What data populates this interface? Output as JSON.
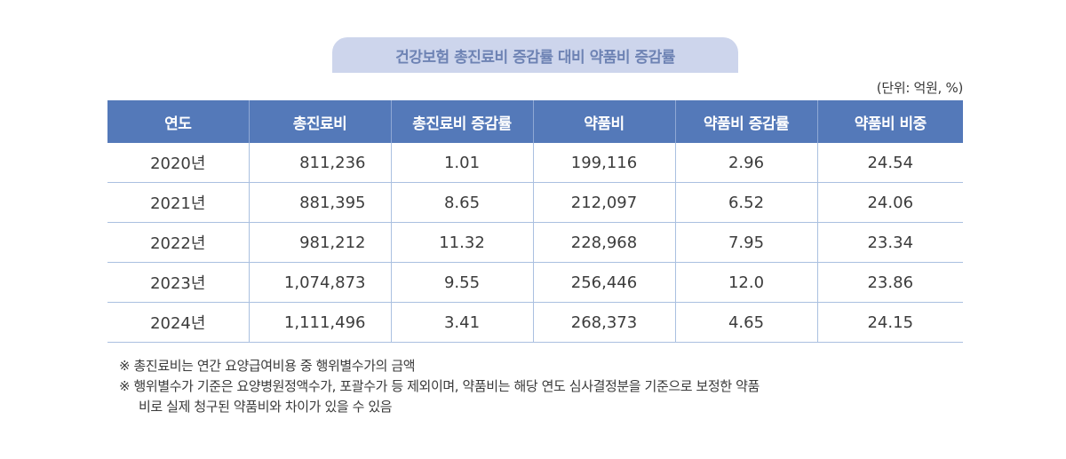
{
  "title": "건강보험 총진료비 증감률 대비 약품비 증감률",
  "unit_note": "(단위: 억원, %)",
  "table": {
    "headers": [
      "연도",
      "총진료비",
      "총진료비 증감률",
      "약품비",
      "약품비 증감률",
      "약품비 비중"
    ],
    "rows": [
      [
        "2020년",
        "811,236",
        "1.01",
        "199,116",
        "2.96",
        "24.54"
      ],
      [
        "2021년",
        "881,395",
        "8.65",
        "212,097",
        "6.52",
        "24.06"
      ],
      [
        "2022년",
        "981,212",
        "11.32",
        "228,968",
        "7.95",
        "23.34"
      ],
      [
        "2023년",
        "1,074,873",
        "9.55",
        "256,446",
        "12.0",
        "23.86"
      ],
      [
        "2024년",
        "1,111,496",
        "3.41",
        "268,373",
        "4.65",
        "24.15"
      ]
    ]
  },
  "notes": [
    "※ 총진료비는 연간 요양급여비용 중 행위별수가의 금액",
    "※ 행위별수가 기준은 요양병원정액수가, 포괄수가 등 제외이며, 약품비는 해당 연도 심사결정분을 기준으로 보정한 약품",
    "비로 실제 청구된 약품비와 차이가 있을 수 있음"
  ],
  "colors": {
    "header_bg": "#5479b9",
    "title_bg": "#cdd5ec",
    "title_text": "#6e83b4",
    "grid_line": "#aac0e0"
  }
}
